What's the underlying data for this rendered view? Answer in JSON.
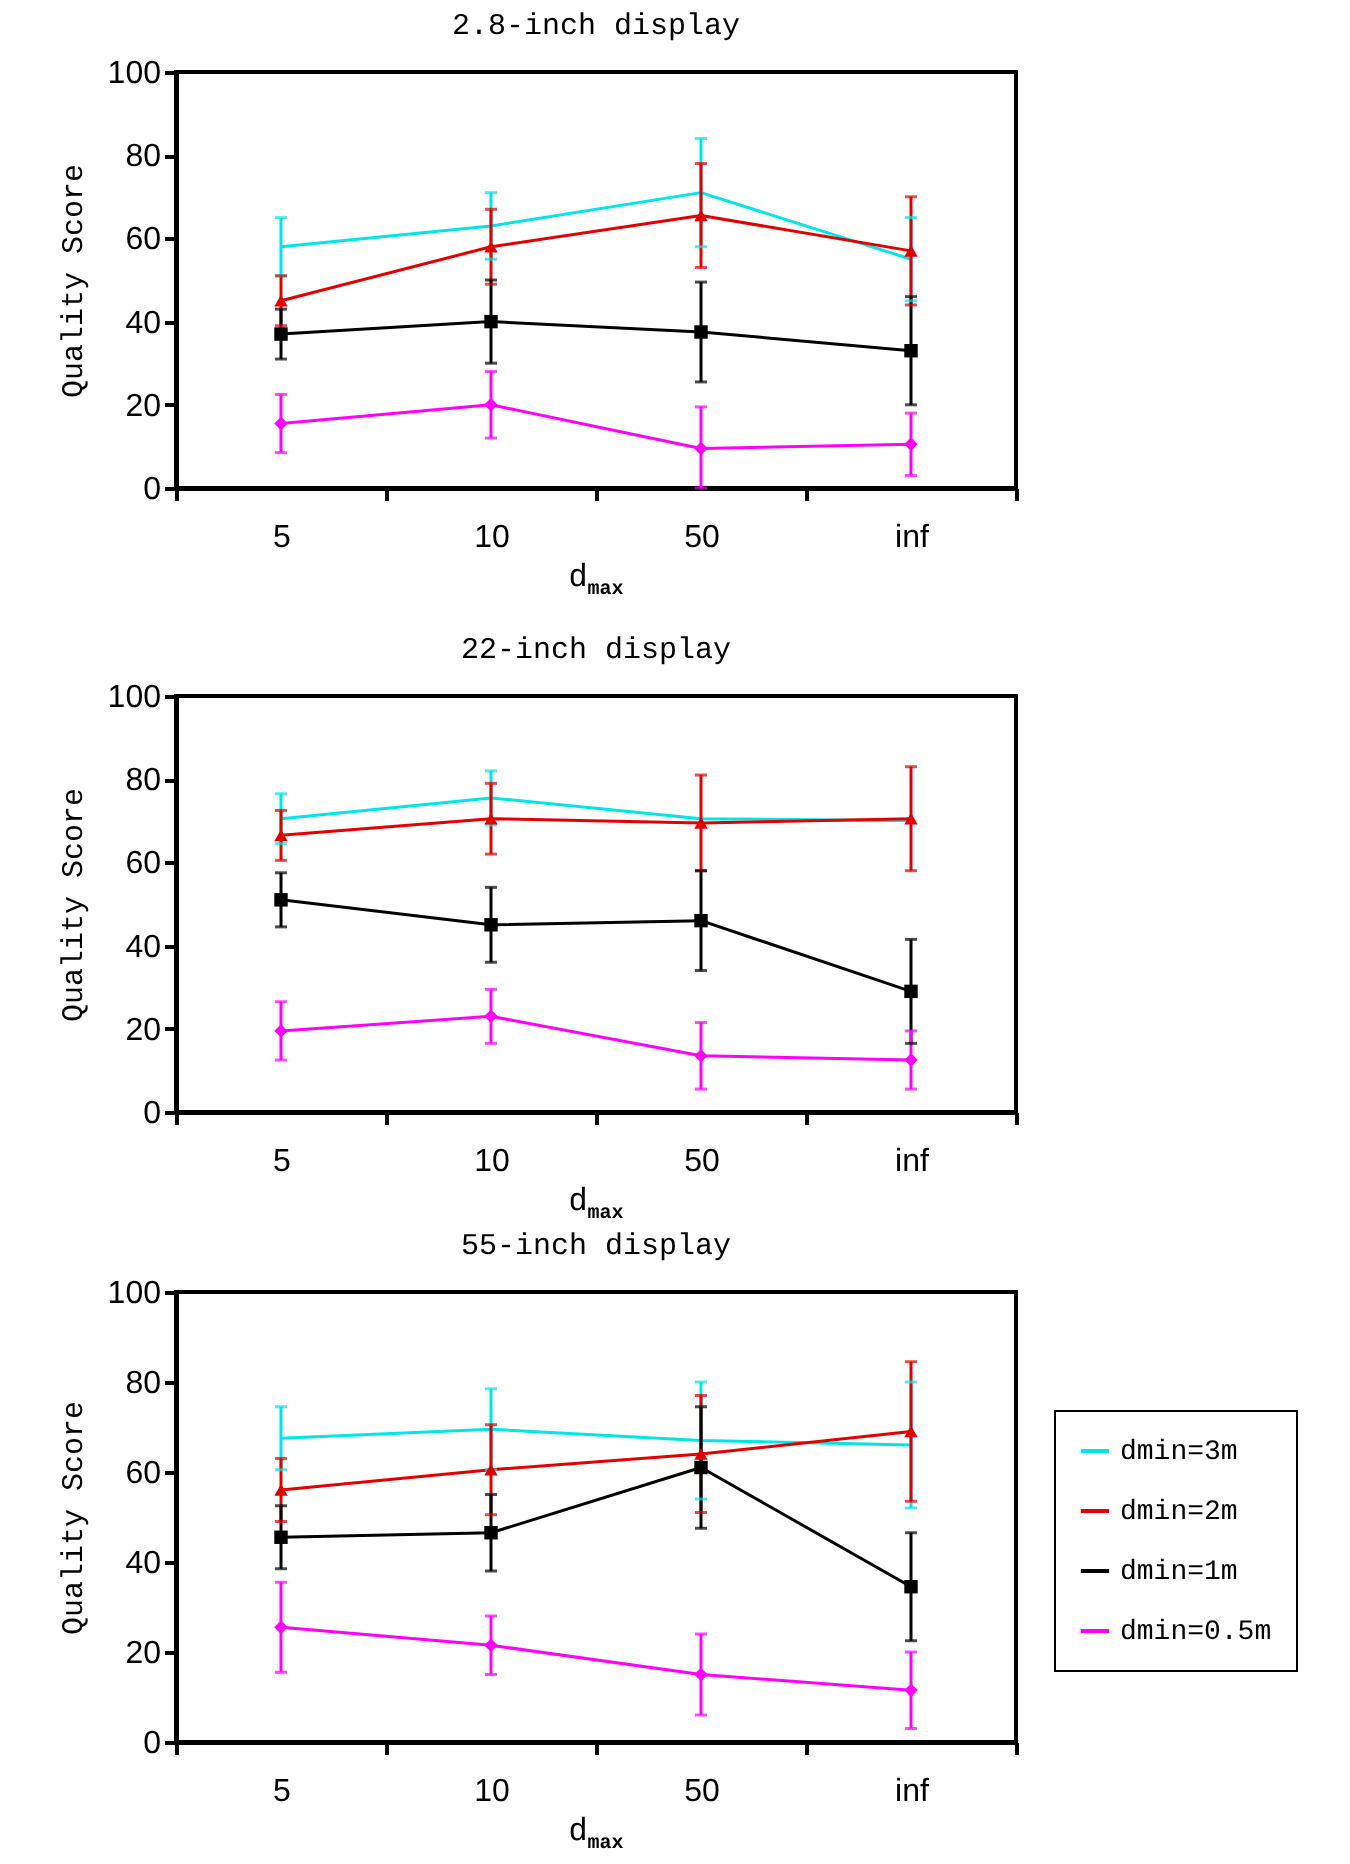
{
  "chart_data": [
    {
      "type": "line",
      "title": "2.8-inch display",
      "xlabel": "d$_{max}$",
      "ylabel": "Quality Score",
      "categories": [
        "5",
        "10",
        "50",
        "inf"
      ],
      "ylim": [
        0,
        100
      ],
      "yticks": [
        0,
        20,
        40,
        60,
        80,
        100
      ],
      "grid": false,
      "legend": false,
      "line_style": "solid",
      "series": [
        {
          "color": "#00e5e5",
          "marker": "none",
          "values": [
            58,
            63,
            71,
            55
          ],
          "errors": [
            7,
            8,
            13,
            10
          ]
        },
        {
          "color": "#e00000",
          "marker": "triangle",
          "values": [
            45,
            58,
            65.5,
            57
          ],
          "errors": [
            6,
            9,
            12.5,
            13
          ]
        },
        {
          "color": "#000000",
          "marker": "square",
          "values": [
            37,
            40,
            37.5,
            33
          ],
          "errors": [
            6,
            10,
            12,
            13
          ]
        },
        {
          "color": "#ff00ff",
          "marker": "diamond",
          "values": [
            15.5,
            20,
            9.5,
            10.5
          ],
          "errors": [
            7,
            8,
            [
              0,
              19.5
            ],
            7.5
          ]
        }
      ]
    },
    {
      "type": "line",
      "title": "22-inch display",
      "xlabel": "d$_{max}$",
      "ylabel": "Quality Score",
      "categories": [
        "5",
        "10",
        "50",
        "inf"
      ],
      "ylim": [
        0,
        100
      ],
      "yticks": [
        0,
        20,
        40,
        60,
        80,
        100
      ],
      "grid": false,
      "legend": false,
      "line_style": "solid",
      "series": [
        {
          "color": "#00e5e5",
          "marker": "none",
          "values": [
            70.5,
            75.5,
            70.5,
            70
          ],
          "errors": [
            6,
            6.5,
            null,
            null
          ]
        },
        {
          "color": "#e00000",
          "marker": "triangle",
          "values": [
            66.5,
            70.5,
            69.5,
            70.5
          ],
          "errors": [
            6,
            8.5,
            11.5,
            12.5
          ]
        },
        {
          "color": "#000000",
          "marker": "square",
          "values": [
            51,
            45,
            46,
            29
          ],
          "errors": [
            6.5,
            9,
            12,
            12.5
          ]
        },
        {
          "color": "#ff00ff",
          "marker": "diamond",
          "values": [
            19.5,
            23,
            13.5,
            12.5
          ],
          "errors": [
            7,
            6.5,
            8,
            7
          ]
        }
      ]
    },
    {
      "type": "line",
      "title": "55-inch display",
      "xlabel": "d$_{max}$",
      "ylabel": "Quality Score",
      "categories": [
        "5",
        "10",
        "50",
        "inf"
      ],
      "ylim": [
        0,
        100
      ],
      "yticks": [
        0,
        20,
        40,
        60,
        80,
        100
      ],
      "grid": false,
      "legend": "right",
      "line_style": "solid",
      "series": [
        {
          "name": "dmin=3m",
          "color": "#00e5e5",
          "marker": "none",
          "values": [
            67.5,
            69.5,
            67,
            66
          ],
          "errors": [
            7,
            9,
            13,
            14
          ]
        },
        {
          "name": "dmin=2m",
          "color": "#e00000",
          "marker": "triangle",
          "values": [
            56,
            60.5,
            64,
            69
          ],
          "errors": [
            7,
            10,
            13,
            15.5
          ]
        },
        {
          "name": "dmin=1m",
          "color": "#000000",
          "marker": "square",
          "values": [
            45.5,
            46.5,
            61,
            34.5
          ],
          "errors": [
            7,
            8.5,
            13.5,
            12
          ]
        },
        {
          "name": "dmin=0.5m",
          "color": "#ff00ff",
          "marker": "diamond",
          "values": [
            25.5,
            21.5,
            15,
            11.5
          ],
          "errors": [
            10,
            6.5,
            9,
            8.5
          ]
        }
      ]
    }
  ]
}
